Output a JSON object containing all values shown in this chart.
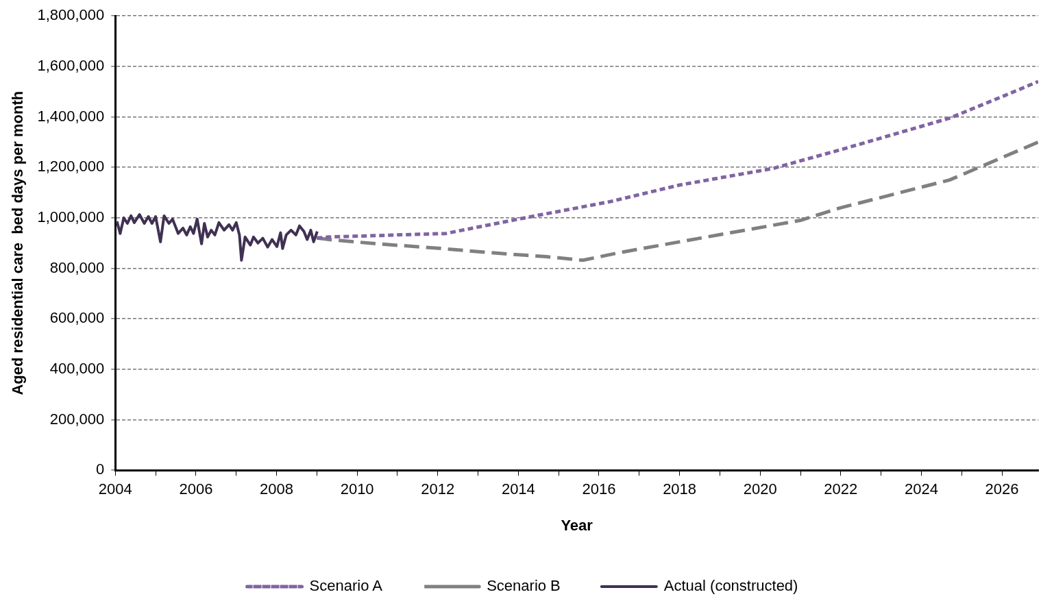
{
  "chart_data": {
    "type": "line",
    "xlabel": "Year",
    "ylabel": "Aged residential care  bed days per month",
    "xlim": [
      2004,
      2026.9
    ],
    "xticks": [
      2004,
      {
        "value": 2005,
        "label": null
      },
      2006,
      {
        "value": 2007,
        "label": null
      },
      2008,
      {
        "value": 2009,
        "label": null
      },
      2010,
      {
        "value": 2011,
        "label": null
      },
      2012,
      {
        "value": 2013,
        "label": null
      },
      2014,
      {
        "value": 2015,
        "label": null
      },
      2016,
      {
        "value": 2017,
        "label": null
      },
      2018,
      {
        "value": 2019,
        "label": null
      },
      2020,
      {
        "value": 2021,
        "label": null
      },
      2022,
      {
        "value": 2023,
        "label": null
      },
      2024,
      {
        "value": 2025,
        "label": null
      },
      2026
    ],
    "ylim": [
      0,
      1800000
    ],
    "yticks": [
      {
        "value": 0,
        "label": "0"
      },
      {
        "value": 200000,
        "label": "200,000"
      },
      {
        "value": 400000,
        "label": "400,000"
      },
      {
        "value": 600000,
        "label": "600,000"
      },
      {
        "value": 800000,
        "label": "800,000"
      },
      {
        "value": 1000000,
        "label": "1,000,000"
      },
      {
        "value": 1200000,
        "label": "1,200,000"
      },
      {
        "value": 1400000,
        "label": "1,400,000"
      },
      {
        "value": 1600000,
        "label": "1,600,000"
      },
      {
        "value": 1800000,
        "label": "1,800,000"
      }
    ],
    "grid": "y",
    "legend": "bottom",
    "marker": "none",
    "series": [
      {
        "name": "Scenario A",
        "color": "#8064a2",
        "line_style": "dotted",
        "x": [
          2009.0,
          2009.3,
          2012.2,
          2014.0,
          2016.3,
          2018.0,
          2020.3,
          2022.0,
          2024.7,
          2026.0,
          2026.9
        ],
        "values": [
          920000,
          924000,
          938000,
          995000,
          1065000,
          1130000,
          1195000,
          1270000,
          1395000,
          1480000,
          1540000
        ]
      },
      {
        "name": "Scenario B",
        "color": "#808080",
        "line_style": "dashed",
        "x": [
          2009.0,
          2009.3,
          2010.5,
          2011.9,
          2013.3,
          2014.7,
          2015.6,
          2016.5,
          2018.0,
          2021.0,
          2022.0,
          2024.7,
          2026.9
        ],
        "values": [
          920000,
          914000,
          897000,
          881000,
          862000,
          846000,
          832000,
          862000,
          905000,
          990000,
          1040000,
          1150000,
          1300000
        ]
      },
      {
        "name": "Actual (constructed)",
        "color": "#403152",
        "line_style": "solid",
        "x": [
          2004.04,
          2004.12,
          2004.21,
          2004.3,
          2004.39,
          2004.47,
          2004.6,
          2004.72,
          2004.82,
          2004.91,
          2005.0,
          2005.12,
          2005.21,
          2005.33,
          2005.42,
          2005.56,
          2005.68,
          2005.77,
          2005.86,
          2005.94,
          2006.03,
          2006.14,
          2006.21,
          2006.29,
          2006.38,
          2006.47,
          2006.57,
          2006.7,
          2006.82,
          2006.91,
          2007.0,
          2007.08,
          2007.13,
          2007.22,
          2007.35,
          2007.43,
          2007.54,
          2007.66,
          2007.78,
          2007.89,
          2008.01,
          2008.1,
          2008.15,
          2008.24,
          2008.36,
          2008.48,
          2008.57,
          2008.68,
          2008.76,
          2008.85,
          2008.92,
          2009.01
        ],
        "values": [
          986000,
          938000,
          1000000,
          978000,
          1008000,
          981000,
          1013000,
          978000,
          1005000,
          978000,
          1005000,
          905000,
          1008000,
          978000,
          995000,
          938000,
          959000,
          932000,
          965000,
          938000,
          995000,
          897000,
          978000,
          924000,
          951000,
          932000,
          981000,
          951000,
          973000,
          951000,
          981000,
          932000,
          832000,
          924000,
          892000,
          924000,
          900000,
          919000,
          884000,
          914000,
          886000,
          941000,
          878000,
          932000,
          951000,
          932000,
          968000,
          946000,
          914000,
          951000,
          905000,
          946000
        ]
      }
    ]
  }
}
